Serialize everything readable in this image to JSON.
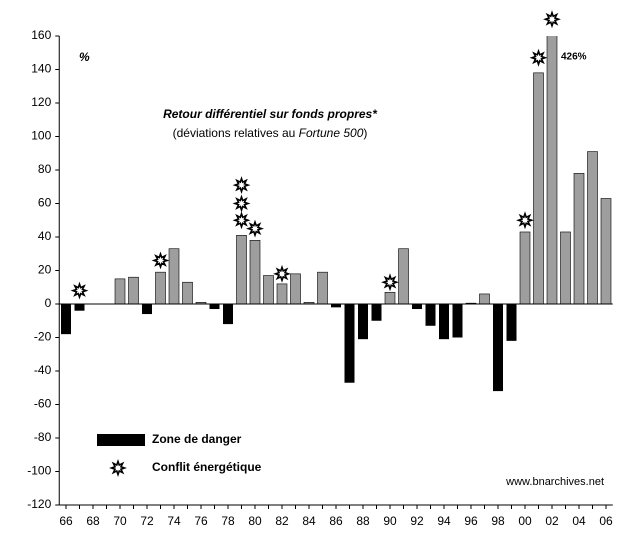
{
  "chart_data": {
    "type": "bar",
    "title": "Retour différentiel sur fonds propres*",
    "subtitle": [
      "(déviations relatives au ",
      "Fortune 500",
      ")"
    ],
    "unit_label": "%",
    "source": "www.bnarchives.net",
    "categories": [
      "66",
      null,
      "68",
      null,
      "70",
      null,
      "72",
      null,
      "74",
      null,
      "76",
      null,
      "78",
      null,
      "80",
      null,
      "82",
      null,
      "84",
      null,
      "86",
      null,
      "88",
      null,
      "90",
      null,
      "92",
      null,
      "94",
      null,
      "96",
      null,
      "98",
      null,
      "00",
      null,
      "02",
      null,
      "04",
      null,
      "06"
    ],
    "ylim": [
      -120,
      160
    ],
    "yticks": [
      -120,
      -100,
      -80,
      -60,
      -40,
      -20,
      0,
      20,
      40,
      60,
      80,
      100,
      120,
      140,
      160
    ],
    "series": [
      {
        "name": "Zone de danger",
        "type": "bar",
        "color": "#9e9e9e",
        "negative_color": "#000000",
        "values": [
          -18,
          -4,
          0,
          0,
          15,
          16,
          -6,
          19,
          33,
          13,
          1,
          -3,
          -12,
          41,
          38,
          17,
          12,
          18,
          1,
          19,
          -2,
          -47,
          -21,
          -10,
          7,
          33,
          -3,
          -13,
          -21,
          -20,
          0.5,
          6,
          -52,
          -22,
          43,
          138,
          426,
          43,
          78,
          91,
          63
        ],
        "value_labels": [
          null,
          null,
          null,
          null,
          null,
          null,
          null,
          null,
          null,
          null,
          null,
          null,
          null,
          null,
          null,
          null,
          null,
          null,
          null,
          null,
          null,
          null,
          null,
          null,
          null,
          null,
          null,
          null,
          null,
          null,
          null,
          null,
          null,
          null,
          null,
          null,
          "426%",
          null,
          null,
          null,
          null
        ]
      },
      {
        "name": "Conflit énergétique",
        "type": "marker",
        "values": [
          null,
          [
            8
          ],
          null,
          null,
          null,
          null,
          null,
          [
            26
          ],
          null,
          null,
          null,
          null,
          null,
          [
            50,
            60,
            71
          ],
          [
            45
          ],
          null,
          [
            18
          ],
          null,
          null,
          null,
          null,
          null,
          null,
          null,
          [
            13
          ],
          null,
          null,
          null,
          null,
          null,
          null,
          null,
          null,
          null,
          [
            50
          ],
          [
            147
          ],
          [
            170
          ],
          null,
          null,
          null,
          null
        ]
      }
    ]
  }
}
